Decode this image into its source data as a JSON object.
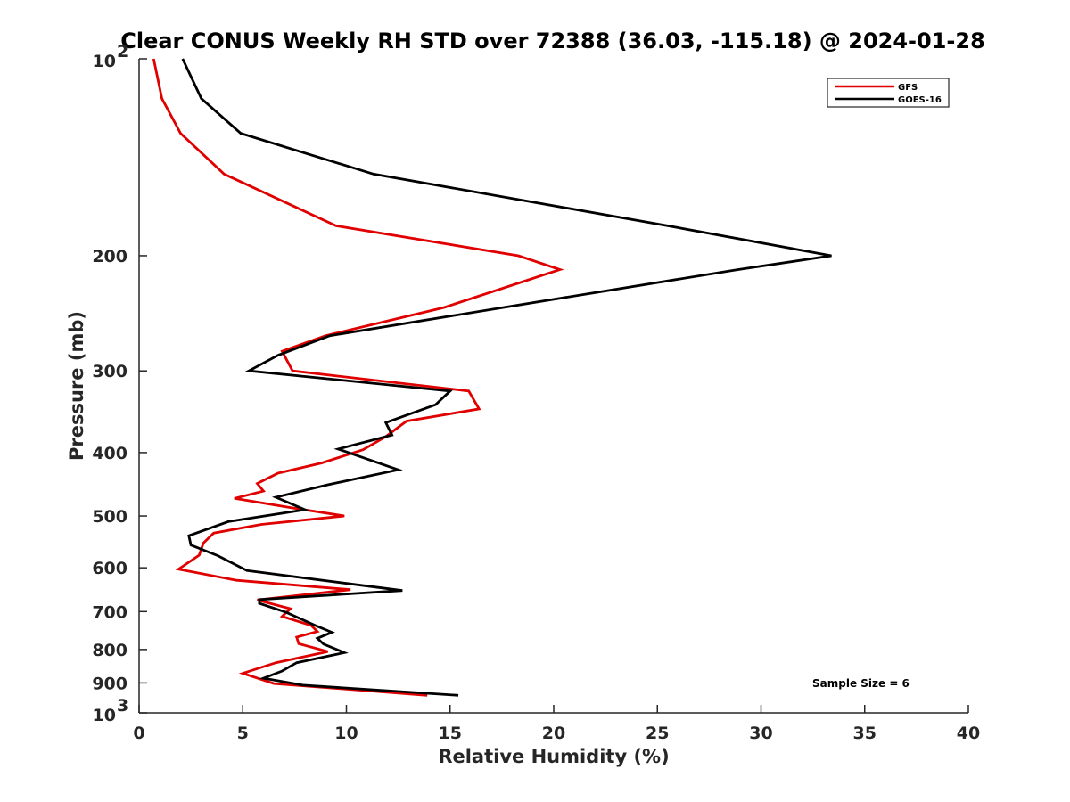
{
  "chart_data": {
    "type": "line",
    "title": "Clear CONUS Weekly RH STD over 72388 (36.03, -115.18) @ 2024-01-28",
    "xlabel": "Relative Humidity (%)",
    "ylabel": "Pressure (mb)",
    "xlim": [
      0,
      40
    ],
    "ylim": [
      100,
      1000
    ],
    "yscale": "log",
    "y_reversed": true,
    "grid": false,
    "legend_position": "top-right",
    "x_ticks": [
      "0",
      "5",
      "10",
      "15",
      "20",
      "25",
      "30",
      "35",
      "40"
    ],
    "y_ticks": [
      {
        "value": 100,
        "base": "10",
        "exp": "2"
      },
      {
        "value": 200,
        "label": "200"
      },
      {
        "value": 300,
        "label": "300"
      },
      {
        "value": 400,
        "label": "400"
      },
      {
        "value": 500,
        "label": "500"
      },
      {
        "value": 600,
        "label": "600"
      },
      {
        "value": 700,
        "label": "700"
      },
      {
        "value": 800,
        "label": "800"
      },
      {
        "value": 900,
        "label": "900"
      },
      {
        "value": 1000,
        "base": "10",
        "exp": "3"
      }
    ],
    "annotation": "Sample Size = 6",
    "series": [
      {
        "name": "GFS",
        "color": "#e00000",
        "points": [
          [
            0.7,
            100
          ],
          [
            1.1,
            115
          ],
          [
            2.0,
            130
          ],
          [
            4.1,
            150
          ],
          [
            9.5,
            180
          ],
          [
            18.3,
            200
          ],
          [
            20.3,
            210
          ],
          [
            14.7,
            240
          ],
          [
            9.0,
            265
          ],
          [
            6.9,
            280
          ],
          [
            7.4,
            300
          ],
          [
            15.9,
            322
          ],
          [
            16.4,
            343
          ],
          [
            12.9,
            358
          ],
          [
            11.9,
            378
          ],
          [
            10.8,
            396
          ],
          [
            8.8,
            415
          ],
          [
            6.7,
            430
          ],
          [
            5.7,
            446
          ],
          [
            6.0,
            458
          ],
          [
            4.6,
            470
          ],
          [
            7.4,
            486
          ],
          [
            9.9,
            500
          ],
          [
            5.9,
            515
          ],
          [
            3.6,
            531
          ],
          [
            3.1,
            550
          ],
          [
            2.9,
            574
          ],
          [
            1.9,
            603
          ],
          [
            4.7,
            627
          ],
          [
            10.2,
            648
          ],
          [
            5.7,
            672
          ],
          [
            7.3,
            693
          ],
          [
            6.9,
            712
          ],
          [
            8.3,
            735
          ],
          [
            8.6,
            751
          ],
          [
            7.6,
            766
          ],
          [
            7.7,
            784
          ],
          [
            9.1,
            806
          ],
          [
            6.6,
            838
          ],
          [
            5.0,
            870
          ],
          [
            6.5,
            902
          ],
          [
            13.9,
            940
          ]
        ]
      },
      {
        "name": "GOES-16",
        "color": "#000000",
        "points": [
          [
            2.1,
            100
          ],
          [
            3.0,
            115
          ],
          [
            4.9,
            130
          ],
          [
            11.3,
            150
          ],
          [
            25.5,
            180
          ],
          [
            33.4,
            200
          ],
          [
            28.9,
            210
          ],
          [
            21.9,
            228
          ],
          [
            9.2,
            265
          ],
          [
            6.7,
            284
          ],
          [
            5.3,
            300
          ],
          [
            15.0,
            322
          ],
          [
            14.3,
            338
          ],
          [
            11.9,
            360
          ],
          [
            12.2,
            376
          ],
          [
            9.6,
            395
          ],
          [
            12.5,
            425
          ],
          [
            9.1,
            448
          ],
          [
            6.6,
            468
          ],
          [
            8.0,
            489
          ],
          [
            4.3,
            510
          ],
          [
            2.4,
            536
          ],
          [
            2.5,
            554
          ],
          [
            3.8,
            575
          ],
          [
            5.2,
            606
          ],
          [
            12.7,
            650
          ],
          [
            5.8,
            671
          ],
          [
            5.8,
            680
          ],
          [
            7.1,
            702
          ],
          [
            8.5,
            735
          ],
          [
            9.3,
            753
          ],
          [
            8.6,
            769
          ],
          [
            8.9,
            785
          ],
          [
            9.9,
            809
          ],
          [
            7.6,
            838
          ],
          [
            6.9,
            863
          ],
          [
            6.0,
            885
          ],
          [
            7.9,
            907
          ],
          [
            15.4,
            940
          ]
        ]
      }
    ]
  }
}
